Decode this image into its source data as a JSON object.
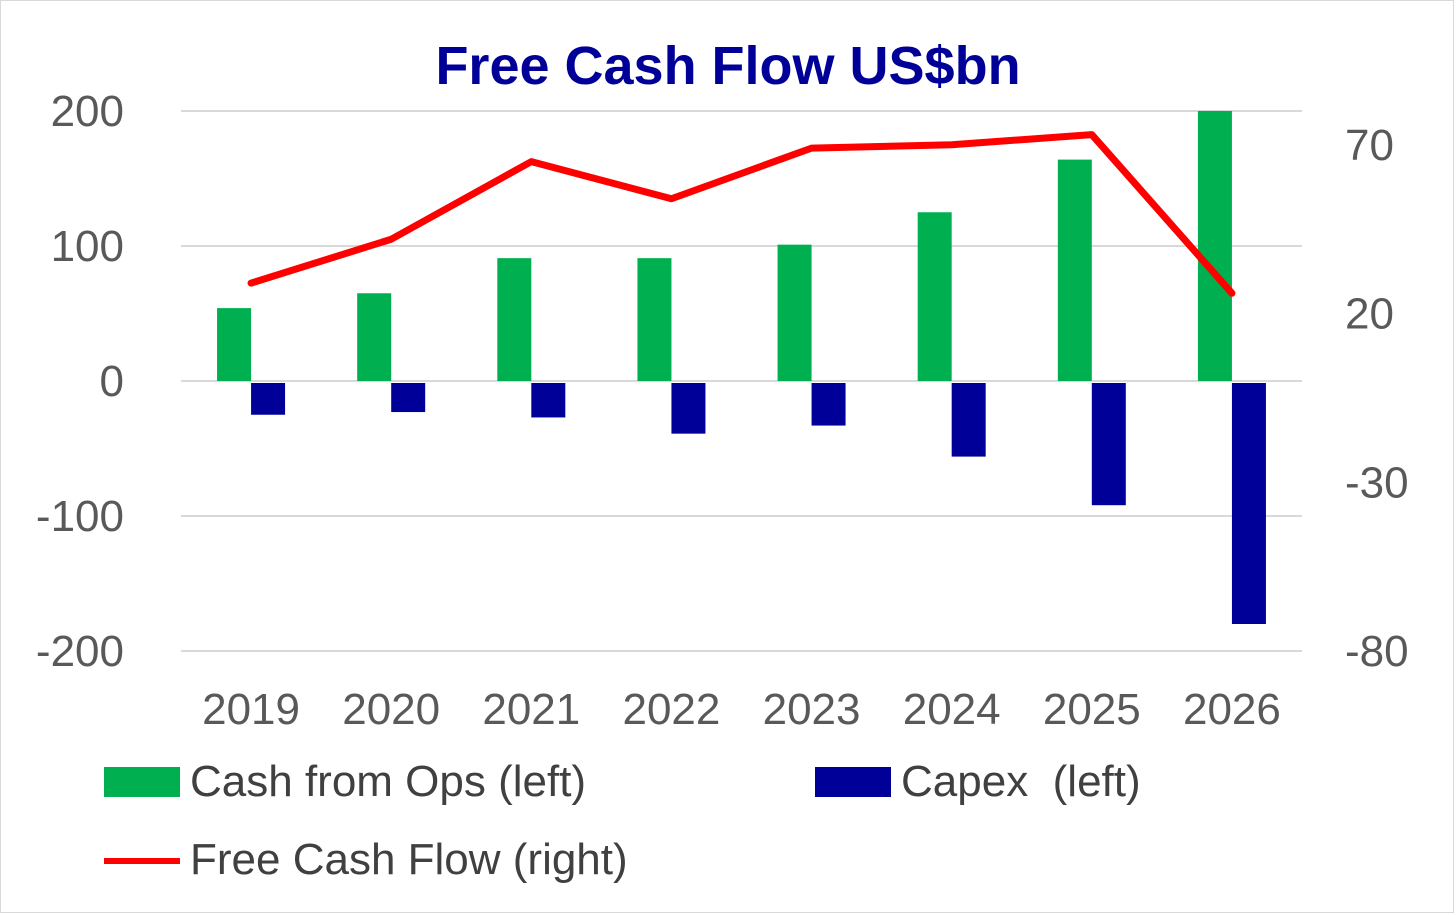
{
  "colors": {
    "title": "#000099",
    "cash_from_ops": "#00B050",
    "capex": "#000099",
    "free_cash_flow": "#FF0000",
    "gridline": "#d9d9d9",
    "tick_text": "#595959"
  },
  "chart_data": {
    "type": "bar",
    "combo": "bar+line (dual axis)",
    "title": "Free Cash Flow US$bn",
    "categories": [
      "2019",
      "2020",
      "2021",
      "2022",
      "2023",
      "2024",
      "2025",
      "2026"
    ],
    "left_axis": {
      "ylim": [
        -200,
        200
      ],
      "ticks": [
        "200",
        "100",
        "0",
        "-100",
        "-200"
      ],
      "tick_values": [
        200,
        100,
        0,
        -100,
        -200
      ]
    },
    "right_axis": {
      "ylim": [
        -80,
        80
      ],
      "ticks": [
        "70",
        "20",
        "-30",
        "-80"
      ],
      "tick_values": [
        70,
        20,
        -30,
        -80
      ]
    },
    "grid": true,
    "legend_position": "bottom",
    "series": [
      {
        "name": "Cash from Ops (left)",
        "type": "bar",
        "axis": "left",
        "color": "#00B050",
        "values": [
          54,
          65,
          91,
          91,
          101,
          125,
          164,
          200
        ]
      },
      {
        "name": "Capex  (left)",
        "type": "bar",
        "axis": "left",
        "color": "#000099",
        "values": [
          -25,
          -23,
          -27,
          -39,
          -33,
          -56,
          -92,
          -180
        ]
      },
      {
        "name": "Free Cash Flow (right)",
        "type": "line",
        "axis": "right",
        "color": "#FF0000",
        "values": [
          29,
          42,
          65,
          54,
          69,
          70,
          73,
          26
        ]
      }
    ]
  }
}
